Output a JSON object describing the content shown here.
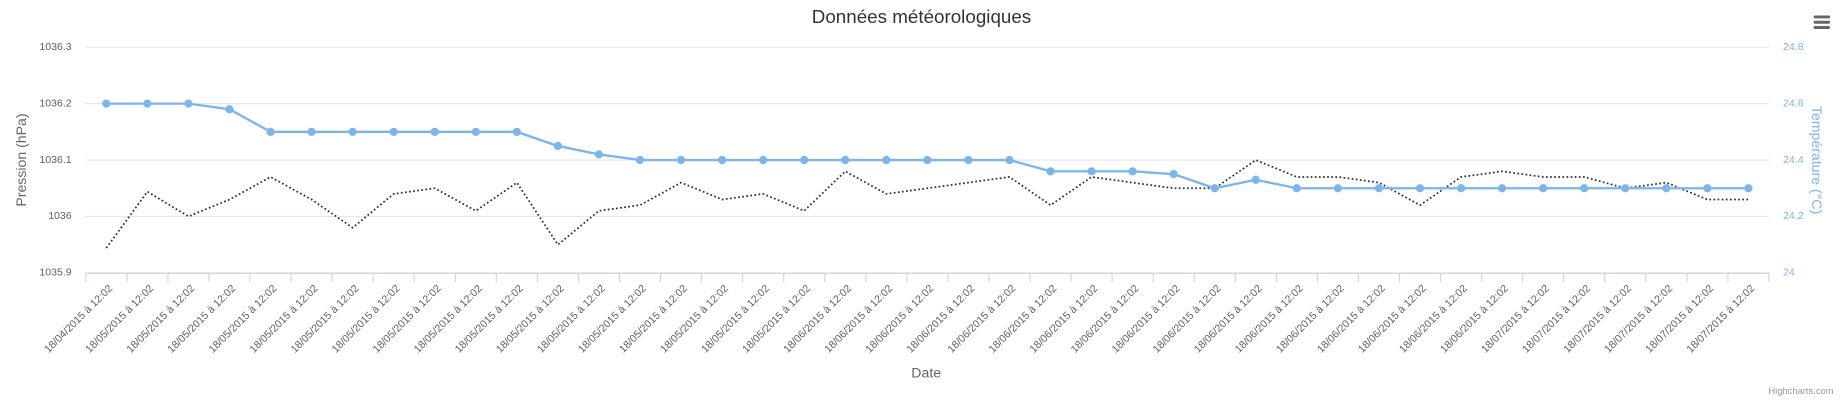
{
  "chart_data": {
    "type": "line",
    "title": "Données météorologiques",
    "x_label": "Date",
    "y_label": "Pression (hPa)",
    "y2_label": "Température (°C)",
    "credits": "Highcharts.com",
    "categories": [
      "18/04/2015 à 12:02",
      "18/05/2015 à 12:02",
      "18/05/2015 à 12:02",
      "18/05/2015 à 12:02",
      "18/05/2015 à 12:02",
      "18/05/2015 à 12:02",
      "18/05/2015 à 12:02",
      "18/05/2015 à 12:02",
      "18/05/2015 à 12:02",
      "18/05/2015 à 12:02",
      "18/05/2015 à 12:02",
      "18/05/2015 à 12:02",
      "18/05/2015 à 12:02",
      "18/05/2015 à 12:02",
      "18/05/2015 à 12:02",
      "18/05/2015 à 12:02",
      "18/05/2015 à 12:02",
      "18/05/2015 à 12:02",
      "18/06/2015 à 12:02",
      "18/06/2015 à 12:02",
      "18/06/2015 à 12:02",
      "18/06/2015 à 12:02",
      "18/06/2015 à 12:02",
      "18/06/2015 à 12:02",
      "18/06/2015 à 12:02",
      "18/06/2015 à 12:02",
      "18/06/2015 à 12:02",
      "18/06/2015 à 12:02",
      "18/06/2015 à 12:02",
      "18/06/2015 à 12:02",
      "18/06/2015 à 12:02",
      "18/06/2015 à 12:02",
      "18/06/2015 à 12:02",
      "18/06/2015 à 12:02",
      "18/06/2015 à 12:02",
      "18/07/2015 à 12:02",
      "18/07/2015 à 12:02",
      "18/07/2015 à 12:02",
      "18/07/2015 à 12:02",
      "18/07/2015 à 12:02",
      "18/07/2015 à 12:02"
    ],
    "series": [
      {
        "color": "#333333",
        "dash": "dotted",
        "axis": "y",
        "values": [
          1035.944,
          1036.044,
          1036.0,
          1036.03,
          1036.07,
          1036.03,
          1035.98,
          1036.04,
          1036.05,
          1036.01,
          1036.06,
          1035.95,
          1036.01,
          1036.02,
          1036.06,
          1036.03,
          1036.04,
          1036.01,
          1036.08,
          1036.04,
          1036.05,
          1036.06,
          1036.07,
          1036.02,
          1036.07,
          1036.06,
          1036.05,
          1036.05,
          1036.1,
          1036.07,
          1036.07,
          1036.06,
          1036.02,
          1036.07,
          1036.08,
          1036.07,
          1036.07,
          1036.05,
          1036.06,
          1036.03,
          1036.03
        ]
      },
      {
        "color": "#7cb5ec",
        "axis": "y2",
        "markers": true,
        "values": [
          24.6,
          24.6,
          24.6,
          24.58,
          24.5,
          24.5,
          24.5,
          24.5,
          24.5,
          24.5,
          24.5,
          24.45,
          24.42,
          24.4,
          24.4,
          24.4,
          24.4,
          24.4,
          24.4,
          24.4,
          24.4,
          24.4,
          24.4,
          24.36,
          24.36,
          24.36,
          24.35,
          24.3,
          24.33,
          24.3,
          24.3,
          24.3,
          24.3,
          24.3,
          24.3,
          24.3,
          24.3,
          24.3,
          24.3,
          24.3,
          24.3
        ]
      }
    ],
    "ylim": [
      1035.9,
      1036.3
    ],
    "yticks": [
      1035.9,
      1036,
      1036.1,
      1036.2,
      1036.3
    ],
    "y2lim": [
      24,
      24.8
    ],
    "y2ticks": [
      24,
      24.2,
      24.4,
      24.6,
      24.8
    ],
    "grid": true
  }
}
